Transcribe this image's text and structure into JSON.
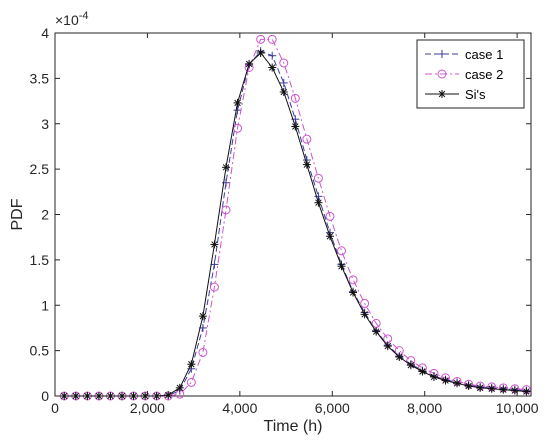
{
  "chart_data": {
    "type": "line",
    "xlabel": "Time (h)",
    "ylabel": "PDF",
    "exponent_label": "×10",
    "exponent_power": "-4",
    "xlim": [
      0,
      10300
    ],
    "ylim": [
      0,
      4
    ],
    "xticks": [
      0,
      2000,
      4000,
      6000,
      8000,
      10000
    ],
    "xtick_labels": [
      "0",
      "2,000",
      "4,000",
      "6,000",
      "8,000",
      "10,000"
    ],
    "yticks": [
      0,
      0.5,
      1,
      1.5,
      2,
      2.5,
      3,
      3.5,
      4
    ],
    "ytick_labels": [
      "0",
      "0.5",
      "1",
      "1.5",
      "2",
      "2.5",
      "3",
      "3.5",
      "4"
    ],
    "legend_position": "top-right",
    "grid": false,
    "series": [
      {
        "name": "case 1",
        "color": "#3b3b9e",
        "line": "dash",
        "marker": "plus",
        "x": [
          200,
          450,
          700,
          950,
          1200,
          1450,
          1700,
          1950,
          2200,
          2450,
          2700,
          2950,
          3200,
          3450,
          3700,
          3950,
          4200,
          4450,
          4700,
          4950,
          5200,
          5450,
          5700,
          5950,
          6200,
          6450,
          6700,
          6950,
          7200,
          7450,
          7700,
          7950,
          8200,
          8450,
          8700,
          8950,
          9200,
          9450,
          9700,
          9950,
          10200
        ],
        "y": [
          0,
          0,
          0,
          0,
          0,
          0,
          0,
          0,
          0,
          0.005,
          0.06,
          0.3,
          0.75,
          1.45,
          2.35,
          3.15,
          3.65,
          3.8,
          3.75,
          3.45,
          3.05,
          2.6,
          2.2,
          1.8,
          1.45,
          1.15,
          0.92,
          0.72,
          0.56,
          0.44,
          0.35,
          0.28,
          0.22,
          0.18,
          0.15,
          0.12,
          0.1,
          0.09,
          0.08,
          0.07,
          0.06
        ]
      },
      {
        "name": "case 2",
        "color": "#cc55cc",
        "line": "dashdot",
        "marker": "circle",
        "x": [
          200,
          450,
          700,
          950,
          1200,
          1450,
          1700,
          1950,
          2200,
          2450,
          2700,
          2950,
          3200,
          3450,
          3700,
          3950,
          4200,
          4450,
          4700,
          4950,
          5200,
          5450,
          5700,
          5950,
          6200,
          6450,
          6700,
          6950,
          7200,
          7450,
          7700,
          7950,
          8200,
          8450,
          8700,
          8950,
          9200,
          9450,
          9700,
          9950,
          10200
        ],
        "y": [
          0,
          0,
          0,
          0,
          0,
          0,
          0,
          0,
          0,
          0,
          0.02,
          0.15,
          0.48,
          1.2,
          2.05,
          2.95,
          3.62,
          3.93,
          3.93,
          3.67,
          3.28,
          2.83,
          2.4,
          1.98,
          1.6,
          1.28,
          1.02,
          0.8,
          0.63,
          0.5,
          0.39,
          0.31,
          0.25,
          0.2,
          0.16,
          0.13,
          0.11,
          0.1,
          0.09,
          0.08,
          0.07
        ]
      },
      {
        "name": "Si's",
        "color": "#111111",
        "line": "solid",
        "marker": "asterisk",
        "x": [
          200,
          450,
          700,
          950,
          1200,
          1450,
          1700,
          1950,
          2200,
          2450,
          2700,
          2950,
          3200,
          3450,
          3700,
          3950,
          4200,
          4450,
          4700,
          4950,
          5200,
          5450,
          5700,
          5950,
          6200,
          6450,
          6700,
          6950,
          7200,
          7450,
          7700,
          7950,
          8200,
          8450,
          8700,
          8950,
          9200,
          9450,
          9700,
          9950,
          10200
        ],
        "y": [
          0,
          0,
          0,
          0,
          0,
          0,
          0,
          0,
          0,
          0.01,
          0.09,
          0.35,
          0.88,
          1.67,
          2.52,
          3.23,
          3.66,
          3.78,
          3.62,
          3.35,
          2.97,
          2.55,
          2.13,
          1.76,
          1.43,
          1.14,
          0.9,
          0.71,
          0.55,
          0.43,
          0.34,
          0.27,
          0.21,
          0.17,
          0.14,
          0.11,
          0.09,
          0.08,
          0.07,
          0.06,
          0.05
        ]
      }
    ]
  }
}
